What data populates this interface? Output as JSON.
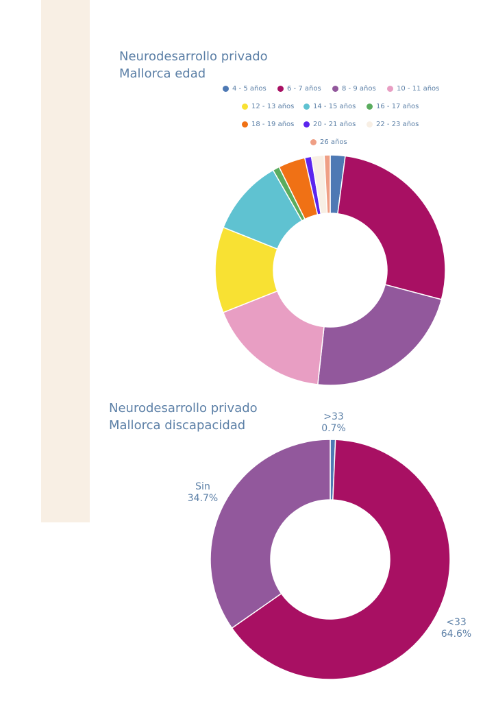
{
  "chart_data": [
    {
      "type": "donut",
      "title": [
        "Neurodesarrollo privado",
        "Mallorca edad"
      ],
      "legend_placement": "top",
      "categories": [
        "4 - 5 años",
        "6 - 7 años",
        "8 - 9 años",
        "10 - 11 años",
        "12 - 13 años",
        "14 - 15 años",
        "16 - 17 años",
        "18 - 19 años",
        "20 - 21 años",
        "22 - 23 años",
        "26 años"
      ],
      "values": [
        2.0,
        25.8,
        21.6,
        16.5,
        11.5,
        10.2,
        0.9,
        3.6,
        0.9,
        1.7,
        0.8
      ],
      "colors": [
        "#4e79b4",
        "#a81063",
        "#92589c",
        "#e89ec3",
        "#f8e133",
        "#5fc2d1",
        "#5aac5e",
        "#f07115",
        "#5b25ee",
        "#f8efe4",
        "#ef9f85"
      ]
    },
    {
      "type": "donut",
      "title": [
        "Neurodesarrollo privado",
        "Mallorca discapacidad"
      ],
      "slices": [
        {
          "label": ">33",
          "value": 0.7,
          "percent_text": "0.7%",
          "color": "#4e79b4"
        },
        {
          "label": "<33",
          "value": 64.6,
          "percent_text": "64.6%",
          "color": "#a81063"
        },
        {
          "label": "Sin",
          "value": 34.7,
          "percent_text": "34.7%",
          "color": "#92589c"
        }
      ]
    }
  ]
}
